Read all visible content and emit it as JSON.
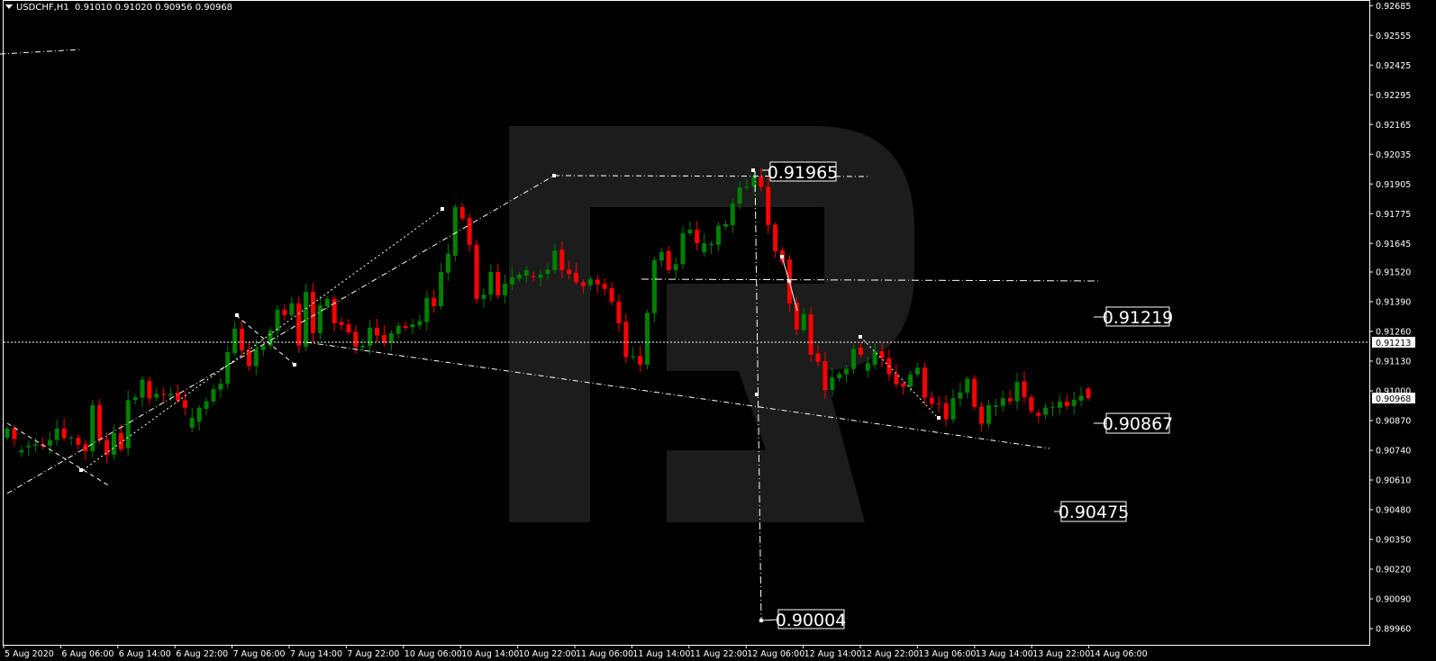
{
  "header": {
    "symbol": "USDCHF,H1",
    "open": "0.91010",
    "high": "0.91020",
    "low": "0.90956",
    "close": "0.90968"
  },
  "colors": {
    "background": "#000000",
    "bull": "#008000",
    "bear": "#ff0000",
    "axis": "#ffffff",
    "watermark": "#1c1c1c"
  },
  "chart_data": {
    "type": "candlestick",
    "symbol": "USDCHF",
    "timeframe": "H1",
    "ylim": [
      0.8993,
      0.927
    ],
    "grid": false,
    "y_ticks": [
      "0.92685",
      "0.92555",
      "0.92425",
      "0.92295",
      "0.92165",
      "0.92035",
      "0.91905",
      "0.91775",
      "0.91645",
      "0.91520",
      "0.91390",
      "0.91260",
      "0.91130",
      "0.91000",
      "0.90870",
      "0.90740",
      "0.90610",
      "0.90480",
      "0.90350",
      "0.90220",
      "0.90090",
      "0.89960"
    ],
    "x_ticks": [
      "5 Aug 2020",
      "6 Aug 06:00",
      "6 Aug 14:00",
      "6 Aug 22:00",
      "7 Aug 06:00",
      "7 Aug 14:00",
      "7 Aug 22:00",
      "10 Aug 06:00",
      "10 Aug 14:00",
      "10 Aug 22:00",
      "11 Aug 06:00",
      "11 Aug 14:00",
      "11 Aug 22:00",
      "12 Aug 06:00",
      "12 Aug 14:00",
      "12 Aug 22:00",
      "13 Aug 06:00",
      "13 Aug 14:00",
      "13 Aug 22:00",
      "14 Aug 06:00"
    ],
    "bid_price": "0.91213",
    "last_price": "0.90968",
    "levels": [
      "0.91965",
      "0.90004",
      "0.91219",
      "0.90867",
      "0.90475"
    ],
    "candles_oc": [
      [
        0.90795,
        0.90835
      ],
      [
        0.90835,
        0.90789
      ],
      [
        0.9073,
        0.9074
      ],
      [
        0.90753,
        0.9076
      ],
      [
        0.9076,
        0.90766
      ],
      [
        0.90766,
        0.9076
      ],
      [
        0.9076,
        0.90785
      ],
      [
        0.90785,
        0.90835
      ],
      [
        0.90835,
        0.90793
      ],
      [
        0.90793,
        0.90795
      ],
      [
        0.90795,
        0.90764
      ],
      [
        0.90766,
        0.90736
      ],
      [
        0.90736,
        0.90937
      ],
      [
        0.90937,
        0.90785
      ],
      [
        0.90785,
        0.9072
      ],
      [
        0.9072,
        0.90815
      ],
      [
        0.90815,
        0.90744
      ],
      [
        0.90749,
        0.90959
      ],
      [
        0.90959,
        0.90972
      ],
      [
        0.9097,
        0.91049
      ],
      [
        0.91042,
        0.90967
      ],
      [
        0.9097,
        0.90987
      ],
      [
        0.90987,
        0.90982
      ],
      [
        0.9098,
        0.90987
      ],
      [
        0.90991,
        0.90957
      ],
      [
        0.90959,
        0.90926
      ],
      [
        0.90839,
        0.90882
      ],
      [
        0.90865,
        0.90926
      ],
      [
        0.90921,
        0.90955
      ],
      [
        0.90953,
        0.91007
      ],
      [
        0.91005,
        0.91032
      ],
      [
        0.91032,
        0.91169
      ],
      [
        0.91165,
        0.91272
      ],
      [
        0.91272,
        0.91176
      ],
      [
        0.91176,
        0.91108
      ],
      [
        0.91108,
        0.91183
      ],
      [
        0.91179,
        0.91197
      ],
      [
        0.91197,
        0.91265
      ],
      [
        0.91261,
        0.91355
      ],
      [
        0.91355,
        0.91331
      ],
      [
        0.91331,
        0.91383
      ],
      [
        0.91383,
        0.91198
      ],
      [
        0.91193,
        0.91433
      ],
      [
        0.91433,
        0.91252
      ],
      [
        0.91252,
        0.91374
      ],
      [
        0.9137,
        0.91402
      ],
      [
        0.91402,
        0.91295
      ],
      [
        0.91301,
        0.91288
      ],
      [
        0.91291,
        0.91256
      ],
      [
        0.91259,
        0.91193
      ],
      [
        0.9119,
        0.91197
      ],
      [
        0.91197,
        0.91276
      ],
      [
        0.91276,
        0.91242
      ],
      [
        0.91244,
        0.9121
      ],
      [
        0.9121,
        0.91252
      ],
      [
        0.91249,
        0.91284
      ],
      [
        0.91284,
        0.91276
      ],
      [
        0.91278,
        0.91291
      ],
      [
        0.91286,
        0.91305
      ],
      [
        0.91301,
        0.91406
      ],
      [
        0.91406,
        0.9137
      ],
      [
        0.9137,
        0.9152
      ],
      [
        0.91517,
        0.916
      ],
      [
        0.91591,
        0.91804
      ],
      [
        0.91804,
        0.91754
      ],
      [
        0.91756,
        0.91639
      ],
      [
        0.91639,
        0.91402
      ],
      [
        0.91402,
        0.91421
      ],
      [
        0.91421,
        0.9152
      ],
      [
        0.9152,
        0.91418
      ],
      [
        0.91418,
        0.91469
      ],
      [
        0.91465,
        0.91496
      ],
      [
        0.91491,
        0.91508
      ],
      [
        0.91504,
        0.91528
      ],
      [
        0.91502,
        0.91498
      ],
      [
        0.91495,
        0.91508
      ],
      [
        0.91511,
        0.9153
      ],
      [
        0.91528,
        0.91613
      ],
      [
        0.91617,
        0.91528
      ],
      [
        0.9153,
        0.91511
      ],
      [
        0.91517,
        0.91475
      ],
      [
        0.91475,
        0.91458
      ],
      [
        0.91462,
        0.91488
      ],
      [
        0.91487,
        0.91465
      ],
      [
        0.91469,
        0.91446
      ],
      [
        0.91449,
        0.9139
      ],
      [
        0.9139,
        0.91295
      ],
      [
        0.91302,
        0.91147
      ],
      [
        0.91147,
        0.91152
      ],
      [
        0.91152,
        0.91114
      ],
      [
        0.91114,
        0.91341
      ],
      [
        0.9134,
        0.91571
      ],
      [
        0.9157,
        0.91607
      ],
      [
        0.91611,
        0.91528
      ],
      [
        0.91528,
        0.91554
      ],
      [
        0.91554,
        0.91689
      ],
      [
        0.91689,
        0.91705
      ],
      [
        0.91704,
        0.91646
      ],
      [
        0.91607,
        0.91646
      ],
      [
        0.91637,
        0.91643
      ],
      [
        0.91639,
        0.91722
      ],
      [
        0.91718,
        0.91729
      ],
      [
        0.91725,
        0.91819
      ],
      [
        0.91819,
        0.91889
      ],
      [
        0.91888,
        0.91893
      ],
      [
        0.91892,
        0.91937
      ],
      [
        0.91937,
        0.91892
      ],
      [
        0.91893,
        0.91725
      ],
      [
        0.91727,
        0.91611
      ],
      [
        0.91614,
        0.91565
      ],
      [
        0.91574,
        0.91383
      ],
      [
        0.91386,
        0.91268
      ],
      [
        0.91265,
        0.91337
      ],
      [
        0.91334,
        0.91158
      ],
      [
        0.91163,
        0.91127
      ],
      [
        0.9113,
        0.91003
      ],
      [
        0.91003,
        0.91059
      ],
      [
        0.91055,
        0.91074
      ],
      [
        0.91072,
        0.91097
      ],
      [
        0.91096,
        0.91184
      ],
      [
        0.91189,
        0.91158
      ],
      [
        0.91088,
        0.91121
      ],
      [
        0.91114,
        0.91173
      ],
      [
        0.91173,
        0.91143
      ],
      [
        0.91143,
        0.91072
      ],
      [
        0.91074,
        0.91029
      ],
      [
        0.91032,
        0.91018
      ],
      [
        0.91018,
        0.91072
      ],
      [
        0.91072,
        0.91101
      ],
      [
        0.91101,
        0.9097
      ],
      [
        0.9097,
        0.90944
      ],
      [
        0.90946,
        0.90944
      ],
      [
        0.90946,
        0.90875
      ],
      [
        0.90875,
        0.90968
      ],
      [
        0.90966,
        0.90993
      ],
      [
        0.90992,
        0.91053
      ],
      [
        0.91053,
        0.9093
      ],
      [
        0.9093,
        0.90856
      ],
      [
        0.90856,
        0.90937
      ],
      [
        0.9093,
        0.90937
      ],
      [
        0.90934,
        0.90968
      ],
      [
        0.90968,
        0.90954
      ],
      [
        0.90954,
        0.91039
      ],
      [
        0.91042,
        0.90972
      ],
      [
        0.90972,
        0.90911
      ],
      [
        0.90903,
        0.90891
      ],
      [
        0.90895,
        0.90926
      ],
      [
        0.90926,
        0.9093
      ],
      [
        0.90926,
        0.90953
      ],
      [
        0.90953,
        0.90934
      ],
      [
        0.90934,
        0.90961
      ],
      [
        0.90957,
        0.90979
      ],
      [
        0.9101,
        0.90968
      ]
    ]
  }
}
